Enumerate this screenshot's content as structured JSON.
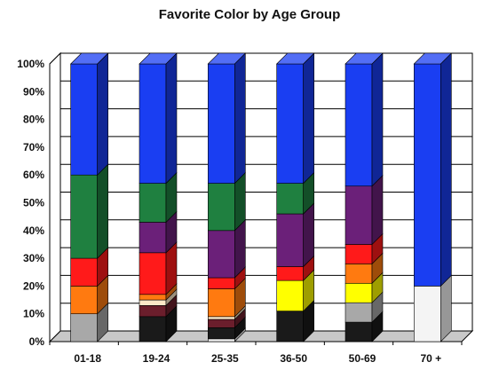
{
  "chart_data": {
    "type": "bar",
    "stacked": true,
    "percent": true,
    "three_d": true,
    "title": "Favorite Color by Age Group",
    "xlabel": "",
    "ylabel": "",
    "ylim": [
      0,
      100
    ],
    "y_ticks": [
      "0%",
      "10%",
      "20%",
      "30%",
      "40%",
      "50%",
      "60%",
      "70%",
      "80%",
      "90%",
      "100%"
    ],
    "grid": true,
    "legend": "none",
    "categories": [
      "01-18",
      "19-24",
      "25-35",
      "36-50",
      "50-69",
      "70 +"
    ],
    "series": [
      {
        "color": "#f4f4f4",
        "values": [
          0,
          0,
          1,
          0,
          0,
          20
        ]
      },
      {
        "color": "#1a1a1a",
        "values": [
          0,
          9,
          4,
          11,
          7,
          0
        ]
      },
      {
        "color": "#a8a8a8",
        "values": [
          10,
          0,
          0,
          0,
          7,
          0
        ]
      },
      {
        "color": "#6b1e2c",
        "values": [
          0,
          4,
          3,
          0,
          0,
          0
        ]
      },
      {
        "color": "#fce8c8",
        "values": [
          0,
          2,
          1,
          0,
          0,
          0
        ]
      },
      {
        "color": "#ffff00",
        "values": [
          0,
          0,
          0,
          11,
          7,
          0
        ]
      },
      {
        "color": "#ff7a10",
        "values": [
          10,
          2,
          10,
          0,
          7,
          0
        ]
      },
      {
        "color": "#ff1a1a",
        "values": [
          10,
          15,
          4,
          5,
          7,
          0
        ]
      },
      {
        "color": "#6b2079",
        "values": [
          0,
          11,
          17,
          19,
          21,
          0
        ]
      },
      {
        "color": "#1f8040",
        "values": [
          30,
          14,
          17,
          11,
          0,
          0
        ]
      },
      {
        "color": "#1a3ef2",
        "values": [
          40,
          43,
          43,
          43,
          44,
          80
        ]
      }
    ],
    "colors": {
      "floor": "#c8c8c8",
      "gridline": "#000000",
      "axis": "#000000"
    }
  }
}
